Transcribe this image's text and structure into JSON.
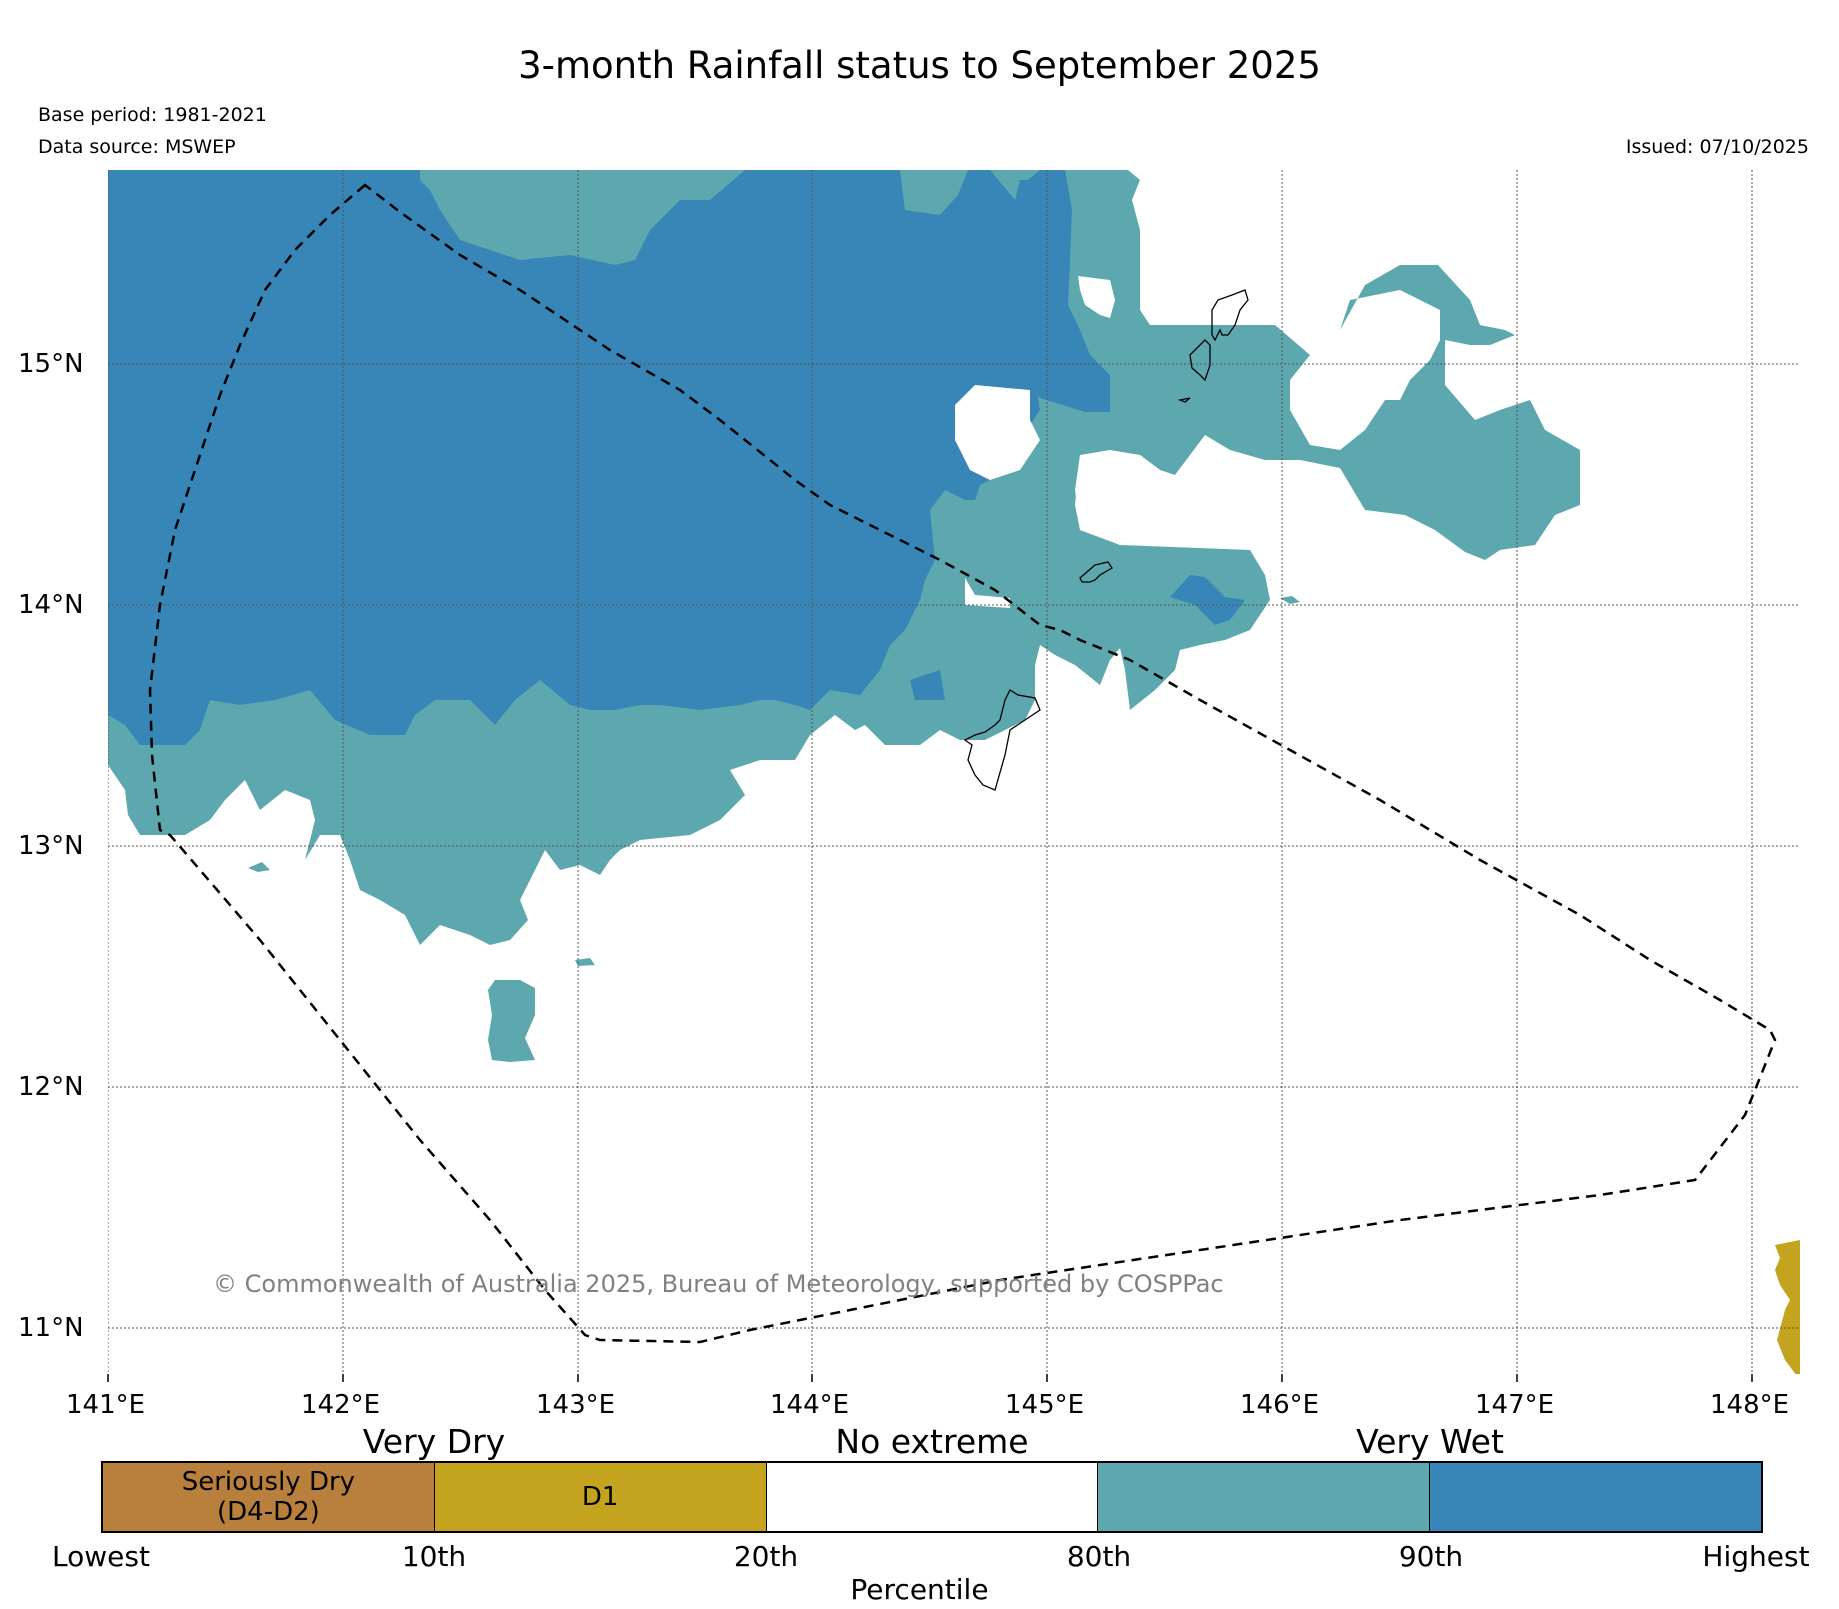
{
  "title": "3-month Rainfall status to September 2025",
  "meta": {
    "base_period": "Base period: 1981-2021",
    "data_source": "Data source: MSWEP",
    "issued": "Issued: 07/10/2025"
  },
  "axes": {
    "lon_labels": [
      "141°E",
      "142°E",
      "143°E",
      "144°E",
      "145°E",
      "146°E",
      "147°E",
      "148°E"
    ],
    "lat_labels": [
      "15°N",
      "14°N",
      "13°N",
      "12°N",
      "11°N"
    ]
  },
  "copyright": "© Commonwealth of Australia 2025, Bureau of Meteorology, supported by COSPPac",
  "legend": {
    "categories": [
      "Very Dry",
      "No extreme",
      "Very Wet"
    ],
    "segments": [
      {
        "label": "Seriously Dry\n(D4-D2)",
        "color": "#b8803c"
      },
      {
        "label": "D1",
        "color": "#c4a41f"
      },
      {
        "label": "",
        "color": "#ffffff"
      },
      {
        "label": "",
        "color": "#5da8ae"
      },
      {
        "label": "",
        "color": "#3786b7"
      }
    ],
    "ticks": [
      "Lowest",
      "10th",
      "20th",
      "80th",
      "90th",
      "Highest"
    ],
    "axis_title": "Percentile"
  },
  "colors": {
    "very_wet_90": "#3786b7",
    "wet_80": "#5da8ae",
    "d1": "#c4a41f",
    "seriously_dry": "#b8803c"
  }
}
